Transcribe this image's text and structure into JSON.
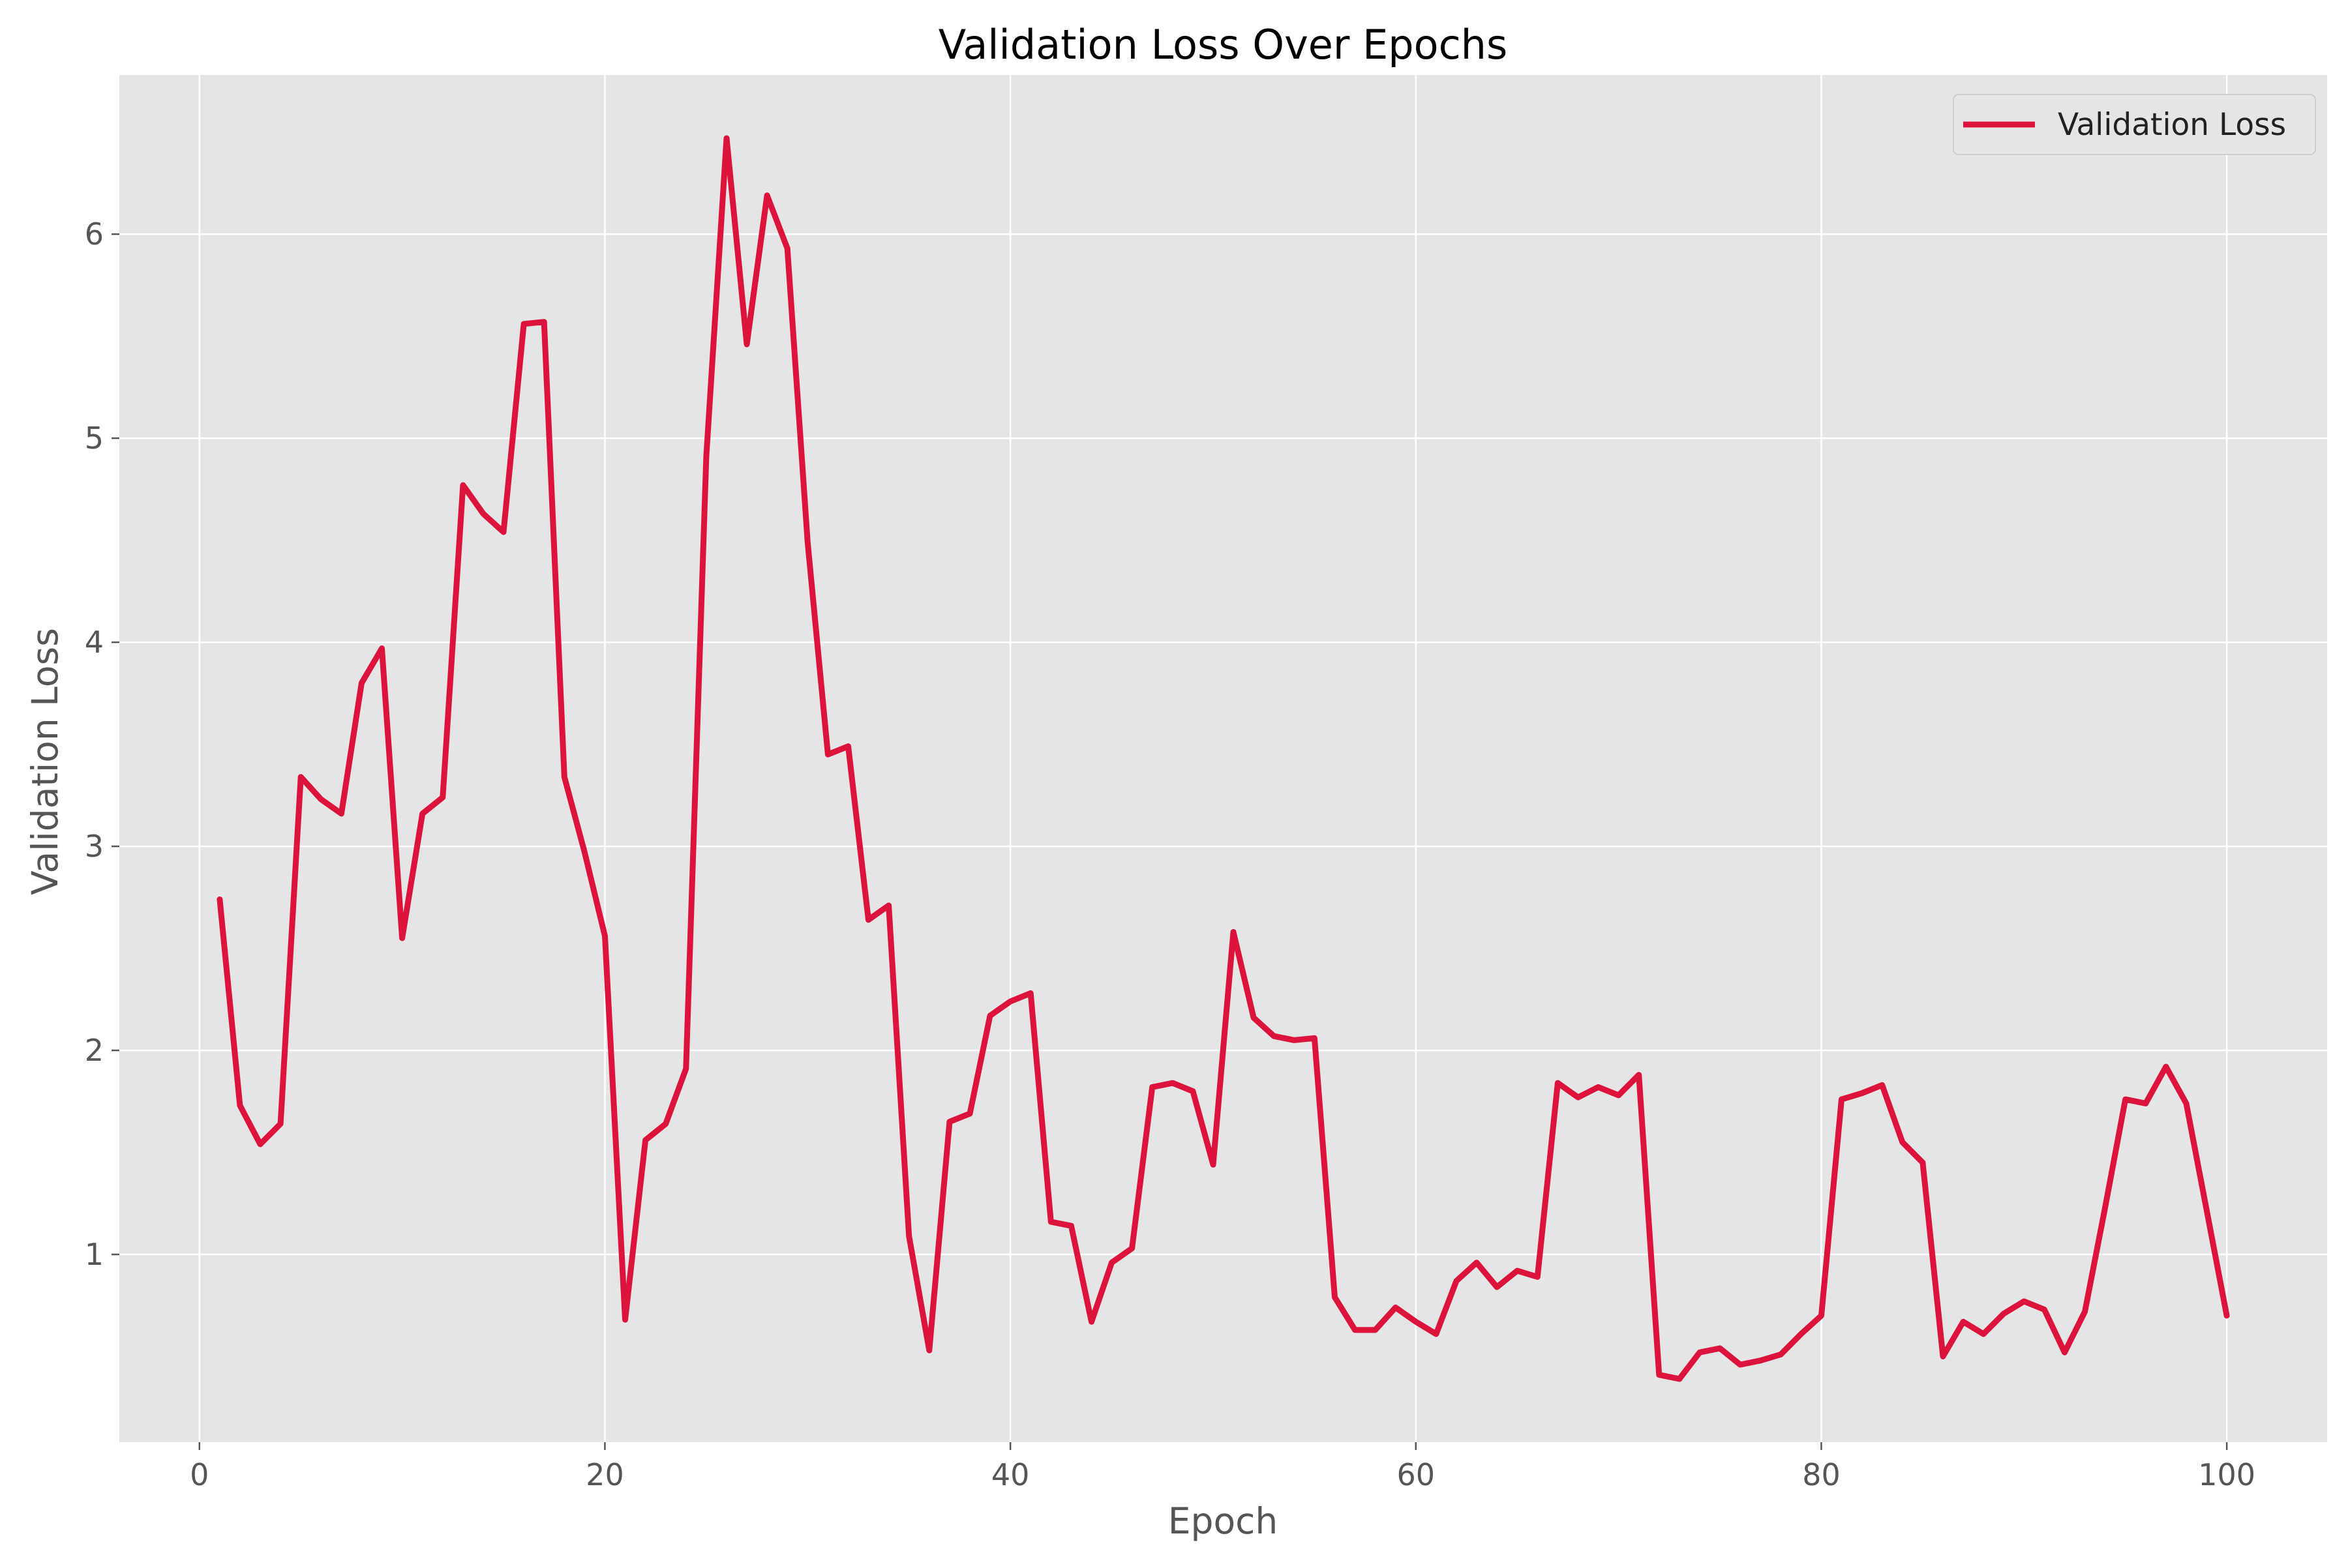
{
  "chart_data": {
    "type": "line",
    "title": "Validation Loss Over Epochs",
    "xlabel": "Epoch",
    "ylabel": "Validation Loss",
    "xlim": [
      -3.95,
      104.95
    ],
    "ylim": [
      0.08,
      6.78
    ],
    "xticks": [
      0,
      20,
      40,
      60,
      80,
      100
    ],
    "yticks": [
      1,
      2,
      3,
      4,
      5,
      6
    ],
    "grid": true,
    "legend": {
      "position": "top-right"
    },
    "colors": {
      "plot_bg": "#e5e5e5",
      "grid": "#ffffff",
      "line": "#dc143c",
      "tick_text": "#555555",
      "title": "#000000"
    },
    "series": [
      {
        "name": "Validation Loss",
        "x": [
          1,
          2,
          3,
          4,
          5,
          6,
          7,
          8,
          9,
          10,
          11,
          12,
          13,
          14,
          15,
          16,
          17,
          18,
          19,
          20,
          21,
          22,
          23,
          24,
          25,
          26,
          27,
          28,
          29,
          30,
          31,
          32,
          33,
          34,
          35,
          36,
          37,
          38,
          39,
          40,
          41,
          42,
          43,
          44,
          45,
          46,
          47,
          48,
          49,
          50,
          51,
          52,
          53,
          54,
          55,
          56,
          57,
          58,
          59,
          60,
          61,
          62,
          63,
          64,
          65,
          66,
          67,
          68,
          69,
          70,
          71,
          72,
          73,
          74,
          75,
          76,
          77,
          78,
          79,
          80,
          81,
          82,
          83,
          84,
          85,
          86,
          87,
          88,
          89,
          90,
          91,
          92,
          93,
          94,
          95,
          96,
          97,
          98,
          99,
          100
        ],
        "values": [
          2.74,
          1.73,
          1.54,
          1.64,
          3.34,
          3.23,
          3.16,
          3.8,
          3.97,
          2.55,
          3.16,
          3.24,
          4.77,
          4.63,
          4.54,
          5.56,
          5.57,
          3.34,
          2.97,
          2.56,
          0.68,
          1.56,
          1.64,
          1.91,
          4.91,
          6.47,
          5.46,
          6.19,
          5.93,
          4.49,
          3.45,
          3.49,
          2.64,
          2.71,
          1.09,
          0.53,
          1.65,
          1.69,
          2.17,
          2.24,
          2.28,
          1.16,
          1.14,
          0.67,
          0.96,
          1.03,
          1.82,
          1.84,
          1.8,
          1.44,
          2.58,
          2.16,
          2.07,
          2.05,
          2.06,
          0.79,
          0.63,
          0.63,
          0.74,
          0.67,
          0.61,
          0.87,
          0.96,
          0.84,
          0.92,
          0.89,
          1.84,
          1.77,
          1.82,
          1.78,
          1.88,
          0.41,
          0.39,
          0.52,
          0.54,
          0.46,
          0.48,
          0.51,
          0.61,
          0.7,
          1.76,
          1.79,
          1.83,
          1.55,
          1.45,
          0.5,
          0.67,
          0.61,
          0.71,
          0.77,
          0.73,
          0.52,
          0.72,
          1.23,
          1.76,
          1.74,
          1.92,
          1.74,
          1.22,
          0.7
        ]
      }
    ]
  }
}
